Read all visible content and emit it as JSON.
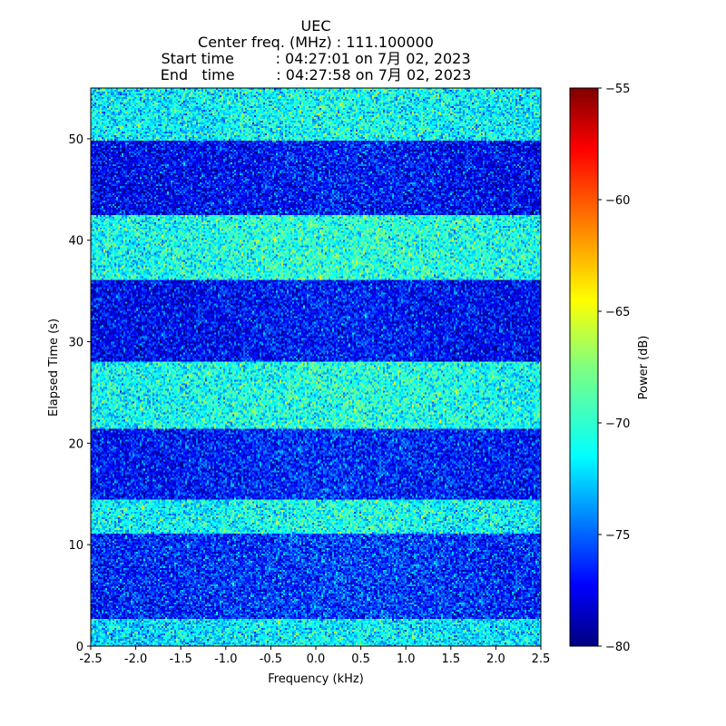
{
  "chart_data": {
    "type": "heatmap",
    "title_lines": [
      "UEC",
      "Center freq. (MHz) : 111.100000",
      "Start time         : 04:27:01 on 7月 02, 2023",
      "End   time         : 04:27:58 on 7月 02, 2023"
    ],
    "xlabel": "Frequency (kHz)",
    "ylabel": "Elapsed Time (s)",
    "xlim": [
      -2.5,
      2.5
    ],
    "ylim": [
      0,
      55
    ],
    "x_ticks": [
      -2.5,
      -2.0,
      -1.5,
      -1.0,
      -0.5,
      0.0,
      0.5,
      1.0,
      1.5,
      2.0,
      2.5
    ],
    "x_tick_labels": [
      "-2.5",
      "-2.0",
      "-1.5",
      "-1.0",
      "-0.5",
      "0.0",
      "0.5",
      "1.0",
      "1.5",
      "2.0",
      "2.5"
    ],
    "y_ticks": [
      0,
      10,
      20,
      30,
      40,
      50
    ],
    "y_tick_labels": [
      "0",
      "10",
      "20",
      "30",
      "40",
      "50"
    ],
    "colorbar": {
      "label": "Power (dB)",
      "colormap": "jet",
      "range": [
        -80,
        -55
      ],
      "ticks": [
        -80,
        -75,
        -70,
        -65,
        -60,
        -55
      ],
      "tick_labels": [
        "−80",
        "−75",
        "−70",
        "−65",
        "−60",
        "−55"
      ]
    },
    "bands": [
      {
        "t_start": 0.0,
        "t_end": 2.6,
        "mean_db": -71.5
      },
      {
        "t_start": 2.6,
        "t_end": 11.0,
        "mean_db": -76.0
      },
      {
        "t_start": 11.0,
        "t_end": 14.5,
        "mean_db": -70.8
      },
      {
        "t_start": 14.5,
        "t_end": 21.5,
        "mean_db": -76.5
      },
      {
        "t_start": 21.5,
        "t_end": 28.0,
        "mean_db": -70.5
      },
      {
        "t_start": 28.0,
        "t_end": 36.0,
        "mean_db": -77.0
      },
      {
        "t_start": 36.0,
        "t_end": 42.5,
        "mean_db": -70.3
      },
      {
        "t_start": 42.5,
        "t_end": 49.8,
        "mean_db": -77.0
      },
      {
        "t_start": 49.8,
        "t_end": 55.0,
        "mean_db": -71.0
      }
    ]
  }
}
